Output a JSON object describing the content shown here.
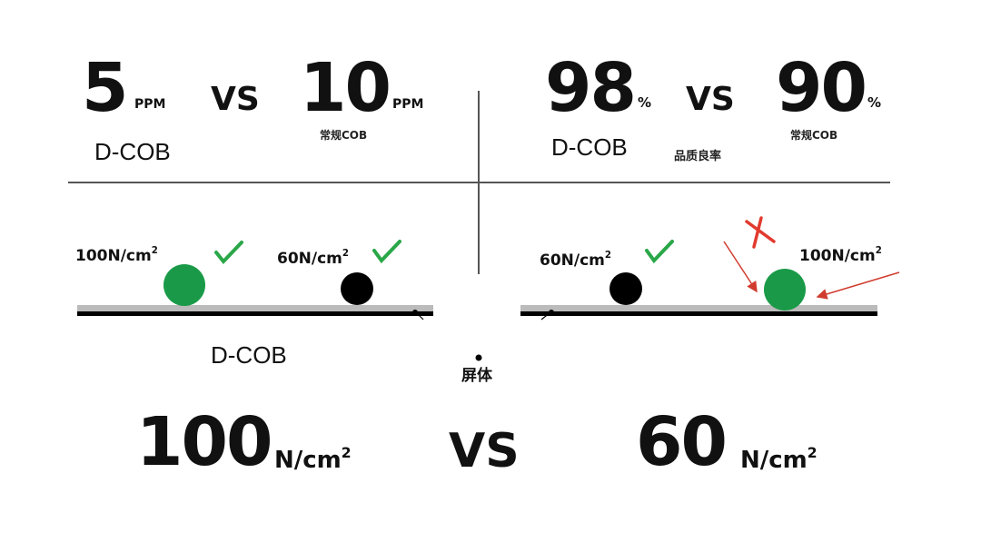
{
  "top_left": {
    "left_value": "5",
    "left_unit": "PPM",
    "vs": "VS",
    "right_value": "10",
    "right_unit": "PPM",
    "left_label": "D-COB",
    "right_label": "常规COB"
  },
  "top_right": {
    "left_value": "98",
    "left_unit": "%",
    "vs": "VS",
    "right_value": "90",
    "right_unit": "%",
    "left_label": "D-COB",
    "middle_label": "品质良率",
    "right_label": "常规COB"
  },
  "diagram_left": {
    "force_1": "100N/cm",
    "force_1_sup": "2",
    "force_2": "60N/cm",
    "force_2_sup": "2",
    "label": "D-COB"
  },
  "diagram_right": {
    "force_1": "60N/cm",
    "force_1_sup": "2",
    "force_2": "100N/cm",
    "force_2_sup": "2"
  },
  "center_label": "屏体",
  "bottom": {
    "left_value": "100",
    "left_unit": "N/cm",
    "left_unit_sup": "2",
    "vs": "VS",
    "right_value": "60",
    "right_unit": "N/cm",
    "right_unit_sup": "2"
  },
  "colors": {
    "green_ball": "#1a9a48",
    "black_ball": "#000000",
    "check": "#2aa748",
    "cross": "#e23a2e",
    "arrow": "#d13b2e",
    "divider": "#555555"
  }
}
